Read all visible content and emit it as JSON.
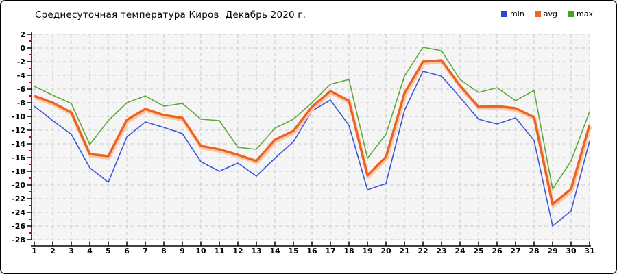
{
  "title": "Среднесуточная температура Киров  Декабрь 2020 г.",
  "legend": {
    "items": [
      {
        "name": "min",
        "label": "min",
        "color": "#2b45d6"
      },
      {
        "name": "avg",
        "label": "avg",
        "color": "#f1661f"
      },
      {
        "name": "max",
        "label": "max",
        "color": "#46a426"
      }
    ]
  },
  "colors": {
    "plot_background": "#f5f5f5",
    "figure_background": "#ffffff",
    "gridline": "#cbcbcb",
    "axis": "#000000",
    "minor_tick": "#d40000",
    "min_line": "#3a57d7",
    "avg_line": "#ed6123",
    "avg_halo": "#f9c9a3",
    "max_line": "#5ea83a"
  },
  "chart_data": {
    "type": "line",
    "title": "Среднесуточная температура Киров  Декабрь 2020 г.",
    "xlabel": "",
    "ylabel": "",
    "x": [
      1,
      2,
      3,
      4,
      5,
      6,
      7,
      8,
      9,
      10,
      11,
      12,
      13,
      14,
      15,
      16,
      17,
      18,
      19,
      20,
      21,
      22,
      23,
      24,
      25,
      26,
      27,
      28,
      29,
      30,
      31
    ],
    "ylim": [
      -28,
      2
    ],
    "ytick_step": 2,
    "yticks": [
      2,
      0,
      -2,
      -4,
      -6,
      -8,
      -10,
      -12,
      -14,
      -16,
      -18,
      -20,
      -22,
      -24,
      -26,
      -28
    ],
    "grid": true,
    "legend_position": "top-right",
    "series": [
      {
        "name": "min",
        "color": "#3a57d7",
        "values": [
          -8.5,
          -10.6,
          -12.6,
          -17.5,
          -19.6,
          -13,
          -10.8,
          -11.6,
          -12.5,
          -16.6,
          -18,
          -16.8,
          -18.7,
          -16.1,
          -13.7,
          -9.2,
          -7.6,
          -11.3,
          -20.7,
          -19.8,
          -9.1,
          -3.4,
          -4.1,
          -7.2,
          -10.4,
          -11.1,
          -10.2,
          -13.5,
          -26,
          -23.8,
          -13.6
        ]
      },
      {
        "name": "avg",
        "color": "#ed6123",
        "values": [
          -7,
          -8,
          -9.4,
          -15.5,
          -15.8,
          -10.5,
          -8.9,
          -9.8,
          -10.2,
          -14.3,
          -14.8,
          -15.6,
          -16.5,
          -13.4,
          -12.1,
          -8.6,
          -6.3,
          -7.7,
          -18.6,
          -15.9,
          -6.6,
          -2,
          -1.8,
          -5.5,
          -8.6,
          -8.5,
          -8.8,
          -10.1,
          -22.8,
          -20.6,
          -11.2
        ]
      },
      {
        "name": "max",
        "color": "#5ea83a",
        "values": [
          -5.6,
          -6.9,
          -8.1,
          -14.1,
          -10.6,
          -8,
          -7,
          -8.5,
          -8.1,
          -10.4,
          -10.6,
          -14.5,
          -14.8,
          -11.7,
          -10.4,
          -8,
          -5.3,
          -4.6,
          -16.1,
          -12.6,
          -4.1,
          0.1,
          -0.4,
          -4.6,
          -6.5,
          -5.8,
          -7.7,
          -6.2,
          -20.6,
          -16.5,
          -9.3
        ]
      }
    ]
  }
}
